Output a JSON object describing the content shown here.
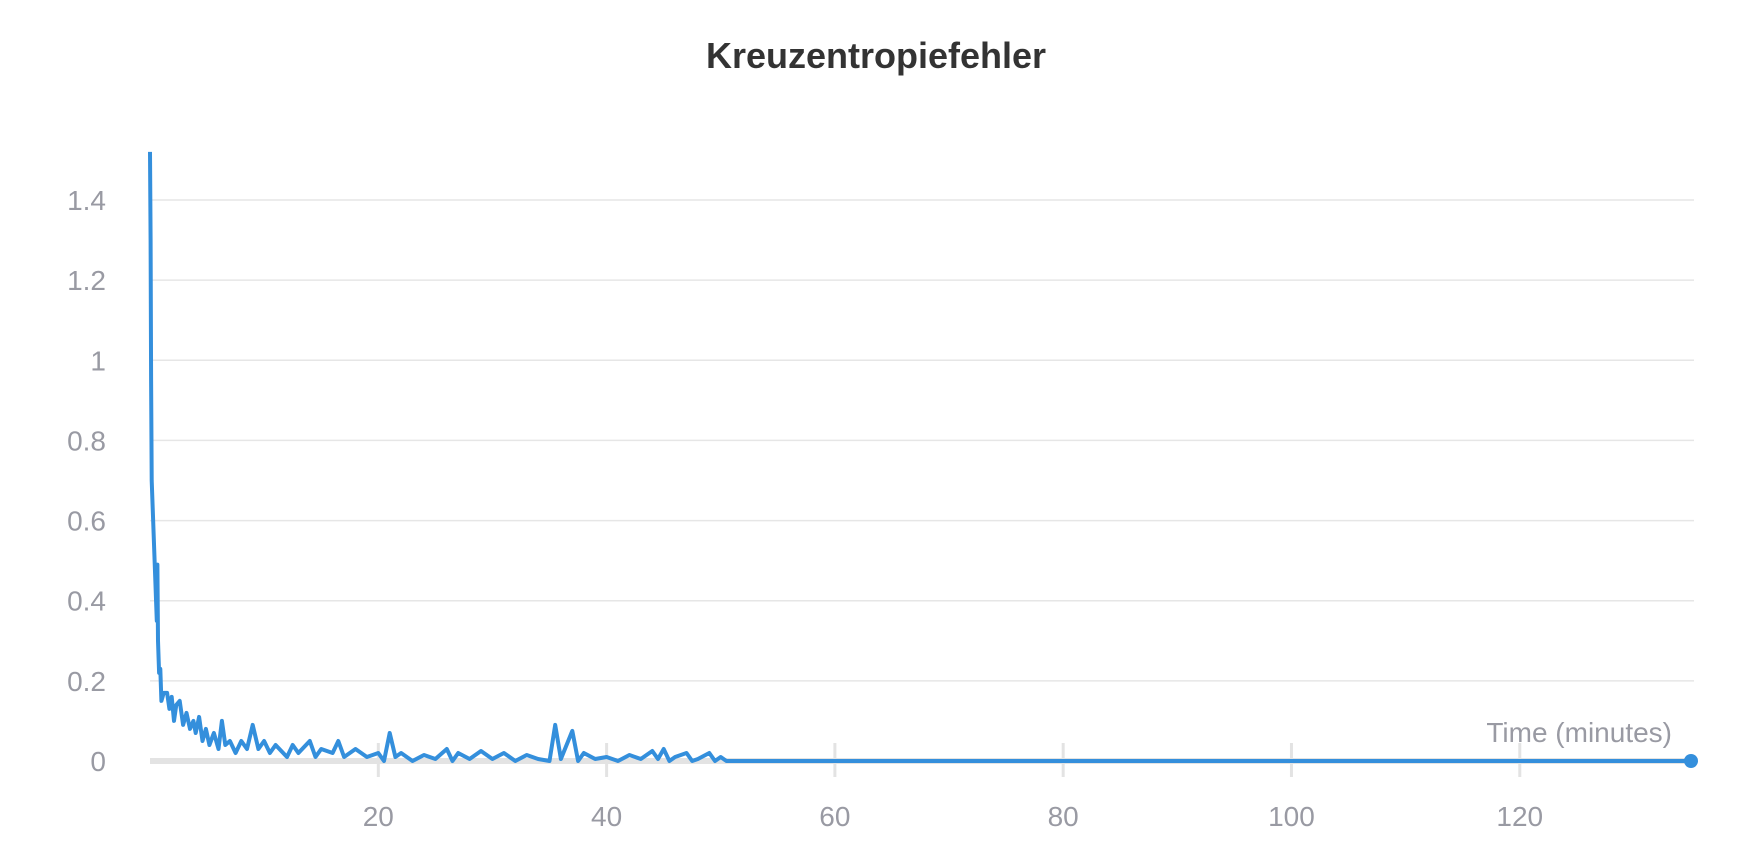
{
  "chart_data": {
    "type": "line",
    "title": "Kreuzentropiefehler",
    "xlabel": "Time (minutes)",
    "ylabel": "",
    "xlim": [
      0,
      135
    ],
    "ylim": [
      0,
      1.55
    ],
    "x_ticks": [
      20,
      40,
      60,
      80,
      100,
      120
    ],
    "x_tick_labels": [
      "20",
      "40",
      "60",
      "80",
      "100",
      "120"
    ],
    "y_ticks": [
      0,
      0.2,
      0.4,
      0.6,
      0.8,
      1,
      1.2,
      1.4
    ],
    "y_tick_labels": [
      "0",
      "0.2",
      "0.4",
      "0.6",
      "0.8",
      "1",
      "1.2",
      "1.4"
    ],
    "grid": "horizontal",
    "line_color": "#348fdc",
    "series": [
      {
        "x": [
          0,
          0.05,
          0.1,
          0.15,
          0.4,
          0.6,
          0.65,
          0.7,
          0.8,
          0.9,
          1.0,
          1.2,
          1.5,
          1.7,
          1.9,
          2.1,
          2.3,
          2.6,
          2.9,
          3.2,
          3.5,
          3.8,
          4.0,
          4.3,
          4.6,
          4.9,
          5.2,
          5.6,
          6.0,
          6.3,
          6.6,
          7,
          7.5,
          8,
          8.5,
          9,
          9.5,
          10,
          10.5,
          11,
          12,
          12.5,
          13,
          14,
          14.5,
          15,
          16,
          16.5,
          17,
          18,
          19,
          20,
          20.5,
          21,
          21.5,
          22,
          23,
          24,
          25,
          26,
          26.5,
          27,
          28,
          29,
          30,
          31,
          32,
          33,
          34,
          35,
          35.5,
          36,
          37,
          37.5,
          38,
          39,
          40,
          41,
          42,
          43,
          44,
          44.5,
          45,
          45.5,
          46,
          47,
          47.5,
          48,
          49,
          49.5,
          50,
          50.5,
          135
        ],
        "y": [
          1.52,
          1.3,
          0.95,
          0.7,
          0.5,
          0.35,
          0.49,
          0.3,
          0.22,
          0.23,
          0.15,
          0.17,
          0.17,
          0.13,
          0.16,
          0.1,
          0.14,
          0.15,
          0.09,
          0.12,
          0.08,
          0.1,
          0.07,
          0.11,
          0.05,
          0.08,
          0.04,
          0.07,
          0.03,
          0.1,
          0.04,
          0.05,
          0.02,
          0.05,
          0.03,
          0.09,
          0.03,
          0.05,
          0.02,
          0.04,
          0.01,
          0.04,
          0.02,
          0.05,
          0.01,
          0.03,
          0.02,
          0.05,
          0.01,
          0.03,
          0.01,
          0.02,
          0.0,
          0.07,
          0.01,
          0.02,
          0.0,
          0.015,
          0.005,
          0.03,
          0.0,
          0.02,
          0.005,
          0.025,
          0.005,
          0.02,
          0.0,
          0.015,
          0.005,
          0.0,
          0.09,
          0.005,
          0.075,
          0.0,
          0.02,
          0.005,
          0.01,
          0.0,
          0.015,
          0.005,
          0.025,
          0.005,
          0.03,
          0.0,
          0.01,
          0.02,
          0.0,
          0.005,
          0.02,
          0.0,
          0.01,
          0.0,
          0.0
        ]
      }
    ]
  }
}
